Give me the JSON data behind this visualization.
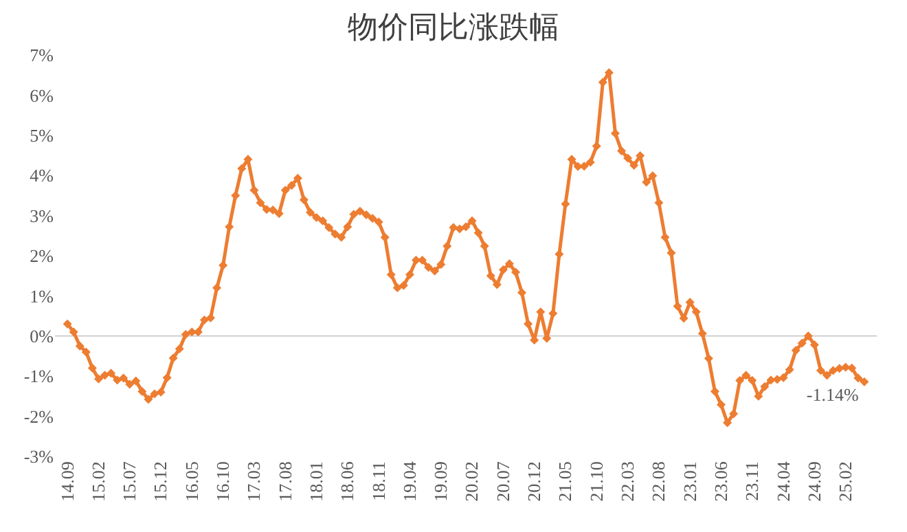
{
  "chart_data": {
    "type": "line",
    "title": "物价同比涨跌幅",
    "categories": [
      "14.09",
      null,
      null,
      null,
      null,
      "15.02",
      null,
      null,
      null,
      null,
      "15.07",
      null,
      null,
      null,
      null,
      "15.12",
      null,
      null,
      null,
      null,
      "16.05",
      null,
      null,
      null,
      null,
      "16.10",
      null,
      null,
      null,
      null,
      "17.03",
      null,
      null,
      null,
      null,
      "17.08",
      null,
      null,
      null,
      null,
      "18.01",
      null,
      null,
      null,
      null,
      "18.06",
      null,
      null,
      null,
      null,
      "18.11",
      null,
      null,
      null,
      null,
      "19.04",
      null,
      null,
      null,
      null,
      "19.09",
      null,
      null,
      null,
      null,
      "20.02",
      null,
      null,
      null,
      null,
      "20.07",
      null,
      null,
      null,
      null,
      "20.12",
      null,
      null,
      null,
      null,
      "21.05",
      null,
      null,
      null,
      null,
      "21.10",
      null,
      null,
      null,
      null,
      "22.03",
      null,
      null,
      null,
      null,
      "22.08",
      null,
      null,
      null,
      null,
      "23.01",
      null,
      null,
      null,
      null,
      "23.06",
      null,
      null,
      null,
      null,
      "23.11",
      null,
      null,
      null,
      null,
      "24.04",
      null,
      null,
      null,
      null,
      "24.09",
      null,
      null,
      null,
      null,
      "25.02",
      null,
      null,
      null
    ],
    "series": [
      {
        "color": "#ed7d31",
        "values": [
          0.3,
          0.1,
          -0.25,
          -0.4,
          -0.8,
          -1.07,
          -0.98,
          -0.93,
          -1.1,
          -1.05,
          -1.2,
          -1.12,
          -1.38,
          -1.58,
          -1.44,
          -1.4,
          -1.04,
          -0.55,
          -0.32,
          0.04,
          0.1,
          0.1,
          0.4,
          0.45,
          1.2,
          1.76,
          2.72,
          3.5,
          4.17,
          4.4,
          3.63,
          3.32,
          3.15,
          3.14,
          3.05,
          3.63,
          3.75,
          3.93,
          3.39,
          3.08,
          2.95,
          2.87,
          2.7,
          2.54,
          2.46,
          2.72,
          3.03,
          3.11,
          3.02,
          2.93,
          2.84,
          2.46,
          1.53,
          1.2,
          1.26,
          1.53,
          1.89,
          1.89,
          1.71,
          1.62,
          1.78,
          2.24,
          2.7,
          2.67,
          2.72,
          2.87,
          2.57,
          2.24,
          1.5,
          1.28,
          1.65,
          1.8,
          1.59,
          1.08,
          0.3,
          -0.1,
          0.6,
          -0.06,
          0.56,
          2.04,
          3.29,
          4.4,
          4.22,
          4.23,
          4.33,
          4.73,
          6.32,
          6.56,
          5.05,
          4.61,
          4.43,
          4.25,
          4.49,
          3.83,
          3.99,
          3.32,
          2.46,
          2.07,
          0.74,
          0.44,
          0.84,
          0.6,
          0.06,
          -0.56,
          -1.38,
          -1.71,
          -2.16,
          -1.94,
          -1.11,
          -0.98,
          -1.11,
          -1.5,
          -1.26,
          -1.1,
          -1.08,
          -1.04,
          -0.84,
          -0.36,
          -0.18,
          0.0,
          -0.22,
          -0.86,
          -0.98,
          -0.86,
          -0.81,
          -0.78,
          -0.8,
          -1.05,
          -1.14
        ],
        "value_labels": [
          null,
          null,
          null,
          null,
          null,
          null,
          null,
          null,
          null,
          null,
          null,
          null,
          null,
          null,
          null,
          null,
          null,
          null,
          null,
          null,
          null,
          null,
          null,
          null,
          null,
          null,
          null,
          null,
          null,
          null,
          null,
          null,
          null,
          null,
          null,
          null,
          null,
          null,
          null,
          null,
          null,
          null,
          null,
          null,
          null,
          null,
          null,
          null,
          null,
          null,
          null,
          null,
          null,
          null,
          null,
          null,
          null,
          null,
          null,
          null,
          null,
          null,
          null,
          null,
          null,
          null,
          null,
          null,
          null,
          null,
          null,
          null,
          null,
          null,
          null,
          null,
          null,
          null,
          null,
          null,
          null,
          null,
          null,
          null,
          null,
          null,
          null,
          null,
          null,
          null,
          null,
          null,
          null,
          null,
          null,
          null,
          null,
          null,
          null,
          null,
          null,
          null,
          null,
          null,
          null,
          null,
          null,
          null,
          null,
          null,
          null,
          null,
          null,
          null,
          null,
          null,
          null,
          null,
          null,
          null,
          null,
          null,
          null,
          null,
          null,
          null,
          null,
          null,
          "-1.14%"
        ]
      }
    ],
    "ylim": [
      -3,
      7
    ],
    "yticks": [
      {
        "value": -3,
        "label": "-3%"
      },
      {
        "value": -2,
        "label": "-2%"
      },
      {
        "value": -1,
        "label": "-1%"
      },
      {
        "value": 0,
        "label": "0%"
      },
      {
        "value": 1,
        "label": "1%"
      },
      {
        "value": 2,
        "label": "2%"
      },
      {
        "value": 3,
        "label": "3%"
      },
      {
        "value": 4,
        "label": "4%"
      },
      {
        "value": 5,
        "label": "5%"
      },
      {
        "value": 6,
        "label": "6%"
      },
      {
        "value": 7,
        "label": "7%"
      }
    ],
    "ref_lines": [
      {
        "axis": "y",
        "value": 0,
        "color": "#d0d0d0"
      }
    ],
    "grid": false,
    "legend": false,
    "marker": "diamond",
    "line_style": "solid"
  }
}
